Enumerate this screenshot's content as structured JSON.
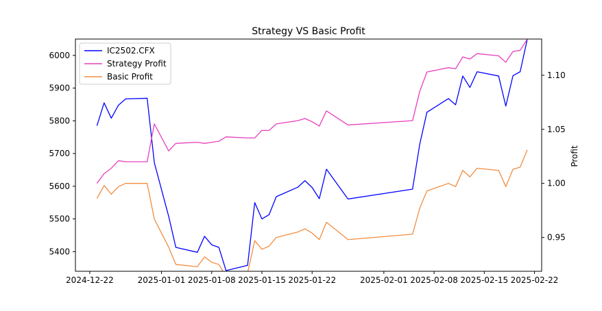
{
  "chart_data": {
    "type": "line",
    "title": "Strategy VS Basic Profit",
    "xlabel": "",
    "ylabel_left": "",
    "ylabel_right": "Profit",
    "xlim": [
      "2024-12-20",
      "2025-02-23"
    ],
    "ylim_left": [
      5340,
      6050
    ],
    "ylim_right": [
      0.9187,
      1.1335
    ],
    "x_ticks": [
      "2024-12-22",
      "2025-01-01",
      "2025-01-08",
      "2025-01-15",
      "2025-01-22",
      "2025-02-01",
      "2025-02-08",
      "2025-02-15",
      "2025-02-22"
    ],
    "y_ticks_left": [
      5400,
      5500,
      5600,
      5700,
      5800,
      5900,
      6000
    ],
    "y_ticks_right": [
      0.95,
      1.0,
      1.05,
      1.1
    ],
    "y_ticks_right_labels": [
      "0.95",
      "1.00",
      "1.05",
      "1.10"
    ],
    "grid": false,
    "legend": "top-left",
    "series": [
      {
        "name": "IC2502.CFX",
        "axis": "left",
        "color": "#0000ff",
        "points": [
          [
            "2024-12-23",
            5785
          ],
          [
            "2024-12-24",
            5855
          ],
          [
            "2024-12-25",
            5808
          ],
          [
            "2024-12-26",
            5848
          ],
          [
            "2024-12-27",
            5867
          ],
          [
            "2024-12-30",
            5869
          ],
          [
            "2024-12-31",
            5672
          ],
          [
            "2025-01-02",
            5508
          ],
          [
            "2025-01-03",
            5413
          ],
          [
            "2025-01-06",
            5398
          ],
          [
            "2025-01-07",
            5447
          ],
          [
            "2025-01-08",
            5421
          ],
          [
            "2025-01-09",
            5413
          ],
          [
            "2025-01-10",
            5342
          ],
          [
            "2025-01-13",
            5358
          ],
          [
            "2025-01-14",
            5550
          ],
          [
            "2025-01-15",
            5500
          ],
          [
            "2025-01-16",
            5513
          ],
          [
            "2025-01-17",
            5568
          ],
          [
            "2025-01-20",
            5597
          ],
          [
            "2025-01-21",
            5617
          ],
          [
            "2025-01-22",
            5596
          ],
          [
            "2025-01-23",
            5562
          ],
          [
            "2025-01-24",
            5652
          ],
          [
            "2025-01-27",
            5561
          ],
          [
            "2025-02-05",
            5591
          ],
          [
            "2025-02-06",
            5728
          ],
          [
            "2025-02-07",
            5826
          ],
          [
            "2025-02-10",
            5868
          ],
          [
            "2025-02-11",
            5849
          ],
          [
            "2025-02-12",
            5937
          ],
          [
            "2025-02-13",
            5902
          ],
          [
            "2025-02-14",
            5950
          ],
          [
            "2025-02-17",
            5937
          ],
          [
            "2025-02-18",
            5845
          ],
          [
            "2025-02-19",
            5938
          ],
          [
            "2025-02-20",
            5950
          ],
          [
            "2025-02-21",
            6050
          ]
        ]
      },
      {
        "name": "Strategy Profit",
        "axis": "right",
        "color": "#e83fbd",
        "points": [
          [
            "2024-12-23",
            1.0
          ],
          [
            "2024-12-24",
            1.009
          ],
          [
            "2024-12-25",
            1.014
          ],
          [
            "2024-12-26",
            1.021
          ],
          [
            "2024-12-27",
            1.02
          ],
          [
            "2024-12-30",
            1.02
          ],
          [
            "2024-12-31",
            1.055
          ],
          [
            "2025-01-02",
            1.03
          ],
          [
            "2025-01-03",
            1.037
          ],
          [
            "2025-01-06",
            1.038
          ],
          [
            "2025-01-07",
            1.037
          ],
          [
            "2025-01-08",
            1.038
          ],
          [
            "2025-01-09",
            1.039
          ],
          [
            "2025-01-10",
            1.043
          ],
          [
            "2025-01-13",
            1.042
          ],
          [
            "2025-01-14",
            1.042
          ],
          [
            "2025-01-15",
            1.049
          ],
          [
            "2025-01-16",
            1.049
          ],
          [
            "2025-01-17",
            1.055
          ],
          [
            "2025-01-20",
            1.058
          ],
          [
            "2025-01-21",
            1.06
          ],
          [
            "2025-01-22",
            1.057
          ],
          [
            "2025-01-23",
            1.053
          ],
          [
            "2025-01-24",
            1.067
          ],
          [
            "2025-01-27",
            1.054
          ],
          [
            "2025-02-05",
            1.058
          ],
          [
            "2025-02-06",
            1.085
          ],
          [
            "2025-02-07",
            1.103
          ],
          [
            "2025-02-10",
            1.107
          ],
          [
            "2025-02-11",
            1.106
          ],
          [
            "2025-02-12",
            1.117
          ],
          [
            "2025-02-13",
            1.115
          ],
          [
            "2025-02-14",
            1.12
          ],
          [
            "2025-02-17",
            1.118
          ],
          [
            "2025-02-18",
            1.112
          ],
          [
            "2025-02-19",
            1.122
          ],
          [
            "2025-02-20",
            1.123
          ],
          [
            "2025-02-21",
            1.1335
          ]
        ]
      },
      {
        "name": "Basic Profit",
        "axis": "right",
        "color": "#f28c3f",
        "points": [
          [
            "2024-12-23",
            0.986
          ],
          [
            "2024-12-24",
            0.998
          ],
          [
            "2024-12-25",
            0.99
          ],
          [
            "2024-12-26",
            0.997
          ],
          [
            "2024-12-27",
            1.0
          ],
          [
            "2024-12-30",
            1.0
          ],
          [
            "2024-12-31",
            0.967
          ],
          [
            "2025-01-02",
            0.941
          ],
          [
            "2025-01-03",
            0.925
          ],
          [
            "2025-01-06",
            0.923
          ],
          [
            "2025-01-07",
            0.932
          ],
          [
            "2025-01-08",
            0.927
          ],
          [
            "2025-01-09",
            0.925
          ],
          [
            "2025-01-10",
            0.914
          ],
          [
            "2025-01-13",
            0.917
          ],
          [
            "2025-01-14",
            0.947
          ],
          [
            "2025-01-15",
            0.939
          ],
          [
            "2025-01-16",
            0.942
          ],
          [
            "2025-01-17",
            0.95
          ],
          [
            "2025-01-20",
            0.955
          ],
          [
            "2025-01-21",
            0.958
          ],
          [
            "2025-01-22",
            0.954
          ],
          [
            "2025-01-23",
            0.948
          ],
          [
            "2025-01-24",
            0.964
          ],
          [
            "2025-01-27",
            0.948
          ],
          [
            "2025-02-05",
            0.953
          ],
          [
            "2025-02-06",
            0.977
          ],
          [
            "2025-02-07",
            0.993
          ],
          [
            "2025-02-10",
            1.0
          ],
          [
            "2025-02-11",
            0.997
          ],
          [
            "2025-02-12",
            1.012
          ],
          [
            "2025-02-13",
            1.006
          ],
          [
            "2025-02-14",
            1.014
          ],
          [
            "2025-02-17",
            1.012
          ],
          [
            "2025-02-18",
            0.997
          ],
          [
            "2025-02-19",
            1.013
          ],
          [
            "2025-02-20",
            1.015
          ],
          [
            "2025-02-21",
            1.031
          ]
        ]
      }
    ]
  }
}
